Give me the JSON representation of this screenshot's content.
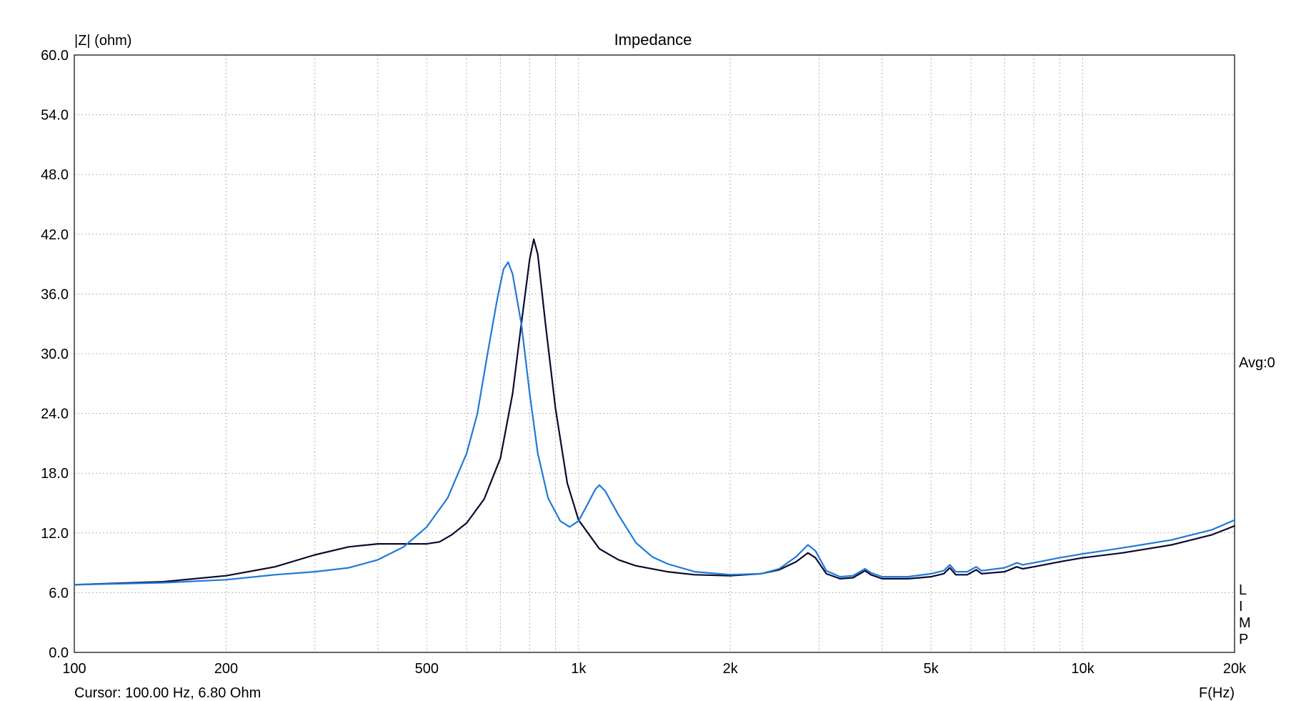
{
  "chart_data": {
    "type": "line",
    "title": "Impedance",
    "ylabel": "|Z| (ohm)",
    "xlabel": "F(Hz)",
    "x_scale": "log",
    "xlim": [
      100,
      20000
    ],
    "ylim": [
      0,
      60
    ],
    "grid": true,
    "x_ticks": [
      {
        "value": 100,
        "label": "100"
      },
      {
        "value": 200,
        "label": "200"
      },
      {
        "value": 500,
        "label": "500"
      },
      {
        "value": 1000,
        "label": "1k"
      },
      {
        "value": 2000,
        "label": "2k"
      },
      {
        "value": 5000,
        "label": "5k"
      },
      {
        "value": 10000,
        "label": "10k"
      },
      {
        "value": 20000,
        "label": "20k"
      }
    ],
    "x_minor_grid": [
      300,
      400,
      600,
      700,
      800,
      900,
      3000,
      4000,
      6000,
      7000,
      8000,
      9000
    ],
    "y_ticks": [
      {
        "value": 0,
        "label": "0.0"
      },
      {
        "value": 6,
        "label": "6.0"
      },
      {
        "value": 12,
        "label": "12.0"
      },
      {
        "value": 18,
        "label": "18.0"
      },
      {
        "value": 24,
        "label": "24.0"
      },
      {
        "value": 30,
        "label": "30.0"
      },
      {
        "value": 36,
        "label": "36.0"
      },
      {
        "value": 42,
        "label": "42.0"
      },
      {
        "value": 48,
        "label": "48.0"
      },
      {
        "value": 54,
        "label": "54.0"
      },
      {
        "value": 60,
        "label": "60.0"
      }
    ],
    "cursor_text": "Cursor: 100.00 Hz, 6.80 Ohm",
    "avg_text": "Avg:0",
    "side_letters": [
      "L",
      "I",
      "M",
      "P"
    ],
    "series": [
      {
        "color": "#0a0a30",
        "points": [
          [
            100,
            6.8
          ],
          [
            150,
            7.1
          ],
          [
            200,
            7.7
          ],
          [
            250,
            8.6
          ],
          [
            300,
            9.8
          ],
          [
            350,
            10.6
          ],
          [
            400,
            10.9
          ],
          [
            450,
            10.9
          ],
          [
            500,
            10.9
          ],
          [
            530,
            11.1
          ],
          [
            560,
            11.8
          ],
          [
            600,
            13.0
          ],
          [
            650,
            15.4
          ],
          [
            700,
            19.5
          ],
          [
            740,
            26.0
          ],
          [
            770,
            33.0
          ],
          [
            800,
            39.5
          ],
          [
            815,
            41.5
          ],
          [
            830,
            40.0
          ],
          [
            860,
            33.0
          ],
          [
            900,
            24.5
          ],
          [
            950,
            17.0
          ],
          [
            1000,
            13.3
          ],
          [
            1100,
            10.4
          ],
          [
            1200,
            9.3
          ],
          [
            1300,
            8.7
          ],
          [
            1500,
            8.1
          ],
          [
            1700,
            7.8
          ],
          [
            2000,
            7.7
          ],
          [
            2300,
            7.9
          ],
          [
            2500,
            8.3
          ],
          [
            2700,
            9.1
          ],
          [
            2850,
            10.0
          ],
          [
            2950,
            9.5
          ],
          [
            3100,
            7.9
          ],
          [
            3300,
            7.4
          ],
          [
            3500,
            7.5
          ],
          [
            3700,
            8.2
          ],
          [
            3800,
            7.8
          ],
          [
            4000,
            7.4
          ],
          [
            4500,
            7.4
          ],
          [
            5000,
            7.6
          ],
          [
            5300,
            7.9
          ],
          [
            5450,
            8.5
          ],
          [
            5600,
            7.8
          ],
          [
            5900,
            7.8
          ],
          [
            6150,
            8.3
          ],
          [
            6300,
            7.9
          ],
          [
            7000,
            8.1
          ],
          [
            7400,
            8.6
          ],
          [
            7600,
            8.4
          ],
          [
            8000,
            8.6
          ],
          [
            9000,
            9.1
          ],
          [
            10000,
            9.5
          ],
          [
            12000,
            10.0
          ],
          [
            15000,
            10.8
          ],
          [
            18000,
            11.8
          ],
          [
            20000,
            12.7
          ]
        ]
      },
      {
        "color": "#1e7ad8",
        "points": [
          [
            100,
            6.8
          ],
          [
            150,
            7.0
          ],
          [
            200,
            7.3
          ],
          [
            250,
            7.8
          ],
          [
            300,
            8.1
          ],
          [
            350,
            8.5
          ],
          [
            400,
            9.3
          ],
          [
            450,
            10.6
          ],
          [
            500,
            12.6
          ],
          [
            550,
            15.5
          ],
          [
            600,
            20.0
          ],
          [
            630,
            24.0
          ],
          [
            660,
            30.0
          ],
          [
            690,
            35.5
          ],
          [
            710,
            38.5
          ],
          [
            725,
            39.2
          ],
          [
            740,
            38.0
          ],
          [
            770,
            33.0
          ],
          [
            800,
            26.0
          ],
          [
            830,
            20.0
          ],
          [
            870,
            15.5
          ],
          [
            920,
            13.2
          ],
          [
            960,
            12.6
          ],
          [
            1000,
            13.2
          ],
          [
            1040,
            14.8
          ],
          [
            1080,
            16.4
          ],
          [
            1100,
            16.8
          ],
          [
            1130,
            16.2
          ],
          [
            1200,
            13.8
          ],
          [
            1300,
            11.0
          ],
          [
            1400,
            9.6
          ],
          [
            1500,
            8.9
          ],
          [
            1700,
            8.1
          ],
          [
            2000,
            7.8
          ],
          [
            2300,
            7.9
          ],
          [
            2500,
            8.4
          ],
          [
            2700,
            9.6
          ],
          [
            2850,
            10.8
          ],
          [
            2950,
            10.2
          ],
          [
            3100,
            8.2
          ],
          [
            3300,
            7.6
          ],
          [
            3500,
            7.7
          ],
          [
            3700,
            8.4
          ],
          [
            3800,
            8.0
          ],
          [
            4000,
            7.6
          ],
          [
            4500,
            7.6
          ],
          [
            5000,
            7.9
          ],
          [
            5300,
            8.2
          ],
          [
            5450,
            8.8
          ],
          [
            5600,
            8.1
          ],
          [
            5900,
            8.1
          ],
          [
            6150,
            8.6
          ],
          [
            6300,
            8.2
          ],
          [
            7000,
            8.5
          ],
          [
            7400,
            9.0
          ],
          [
            7600,
            8.8
          ],
          [
            8000,
            9.0
          ],
          [
            9000,
            9.5
          ],
          [
            10000,
            9.9
          ],
          [
            12000,
            10.5
          ],
          [
            15000,
            11.3
          ],
          [
            18000,
            12.3
          ],
          [
            20000,
            13.3
          ]
        ]
      }
    ]
  }
}
